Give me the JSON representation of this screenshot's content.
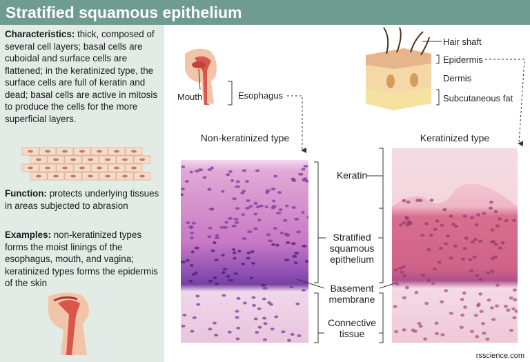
{
  "header": {
    "title": "Stratified squamous epithelium"
  },
  "sidebar": {
    "characteristics": {
      "label": "Characteristics:",
      "text": "thick, composed of several cell layers; basal cells are cuboidal and surface cells are flattened; in the keratinized type, the surface cells are full of keratin and dead; basal cells are active in mitosis to produce the cells for the more superficial layers."
    },
    "function": {
      "label": "Function:",
      "text": "protects underlying tissues in areas subjected to abrasion"
    },
    "examples": {
      "label": "Examples:",
      "text": "non-keratinized types forms the moist linings of the esophagus, mouth, and vagina; keratinized types forms the epidermis of the skin"
    }
  },
  "diagram": {
    "mouth": "Mouth",
    "esophagus": "Esophagus",
    "hair_shaft": "Hair shaft",
    "epidermis": "Epidermis",
    "dermis": "Dermis",
    "subcutaneous_fat": "Subcutaneous fat",
    "non_keratinized": "Non-keratinized type",
    "keratinized": "Keratinized type",
    "keratin": "Keratin",
    "stratified": [
      "Stratified",
      "squamous",
      "epithelium"
    ],
    "basement": [
      "Basement",
      "membrane"
    ],
    "connective": [
      "Connective",
      "tissue"
    ]
  },
  "credit": "rsscience.com"
}
